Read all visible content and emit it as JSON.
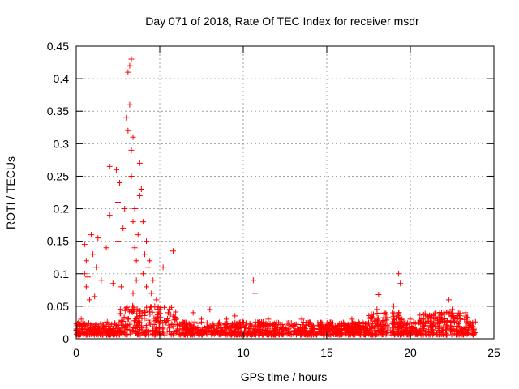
{
  "chart_data": {
    "type": "scatter",
    "title": "Day 071 of 2018, Rate Of TEC Index for receiver msdr",
    "xlabel": "GPS time / hours",
    "ylabel": "ROTI / TECUs",
    "xlim": [
      0,
      25
    ],
    "ylim": [
      0,
      0.45
    ],
    "xticks": [
      "0",
      "5",
      "10",
      "15",
      "20",
      "25"
    ],
    "yticks": [
      "0",
      "0.05",
      "0.1",
      "0.15",
      "0.2",
      "0.25",
      "0.3",
      "0.35",
      "0.4",
      "0.45"
    ],
    "grid": true,
    "marker": "+",
    "marker_color": "#ff0000",
    "series": [
      {
        "name": "ROTI",
        "x": [
          0.1,
          0.3,
          0.5,
          0.5,
          0.6,
          0.6,
          0.7,
          0.8,
          0.9,
          1.0,
          1.1,
          1.2,
          1.3,
          1.5,
          1.8,
          2.0,
          2.0,
          2.2,
          2.4,
          2.5,
          2.5,
          2.6,
          2.7,
          2.8,
          2.9,
          3.0,
          3.1,
          3.1,
          3.2,
          3.2,
          3.3,
          3.3,
          3.3,
          3.4,
          3.4,
          3.4,
          3.5,
          3.5,
          3.6,
          3.6,
          3.7,
          3.8,
          3.8,
          3.9,
          4.0,
          4.0,
          4.1,
          4.2,
          4.2,
          4.3,
          4.4,
          4.5,
          4.6,
          4.7,
          4.8,
          5.0,
          5.2,
          5.5,
          5.8,
          6.0,
          6.5,
          7.0,
          7.5,
          8.0,
          8.5,
          9.0,
          9.5,
          10.0,
          10.6,
          10.7,
          11.0,
          11.5,
          12.0,
          12.5,
          13.0,
          13.5,
          14.0,
          14.5,
          15.0,
          15.5,
          16.0,
          16.5,
          17.0,
          17.5,
          18.0,
          18.1,
          18.5,
          19.0,
          19.3,
          19.4,
          19.5,
          20.0,
          20.5,
          21.0,
          21.5,
          22.0,
          22.3,
          22.5,
          23.0,
          23.5,
          23.8
        ],
        "y": [
          0.012,
          0.03,
          0.1,
          0.145,
          0.08,
          0.12,
          0.095,
          0.06,
          0.16,
          0.13,
          0.065,
          0.11,
          0.155,
          0.09,
          0.14,
          0.265,
          0.19,
          0.085,
          0.26,
          0.21,
          0.15,
          0.24,
          0.08,
          0.17,
          0.2,
          0.34,
          0.41,
          0.32,
          0.36,
          0.42,
          0.43,
          0.29,
          0.25,
          0.31,
          0.18,
          0.07,
          0.14,
          0.2,
          0.12,
          0.09,
          0.16,
          0.22,
          0.27,
          0.23,
          0.1,
          0.18,
          0.13,
          0.08,
          0.15,
          0.11,
          0.12,
          0.07,
          0.09,
          0.05,
          0.06,
          0.045,
          0.11,
          0.04,
          0.135,
          0.03,
          0.025,
          0.04,
          0.03,
          0.045,
          0.02,
          0.03,
          0.035,
          0.025,
          0.09,
          0.07,
          0.02,
          0.03,
          0.025,
          0.015,
          0.02,
          0.03,
          0.025,
          0.02,
          0.015,
          0.02,
          0.025,
          0.03,
          0.02,
          0.025,
          0.045,
          0.068,
          0.04,
          0.05,
          0.1,
          0.085,
          0.03,
          0.03,
          0.025,
          0.035,
          0.03,
          0.04,
          0.06,
          0.045,
          0.03,
          0.02,
          0.015
        ]
      }
    ]
  }
}
